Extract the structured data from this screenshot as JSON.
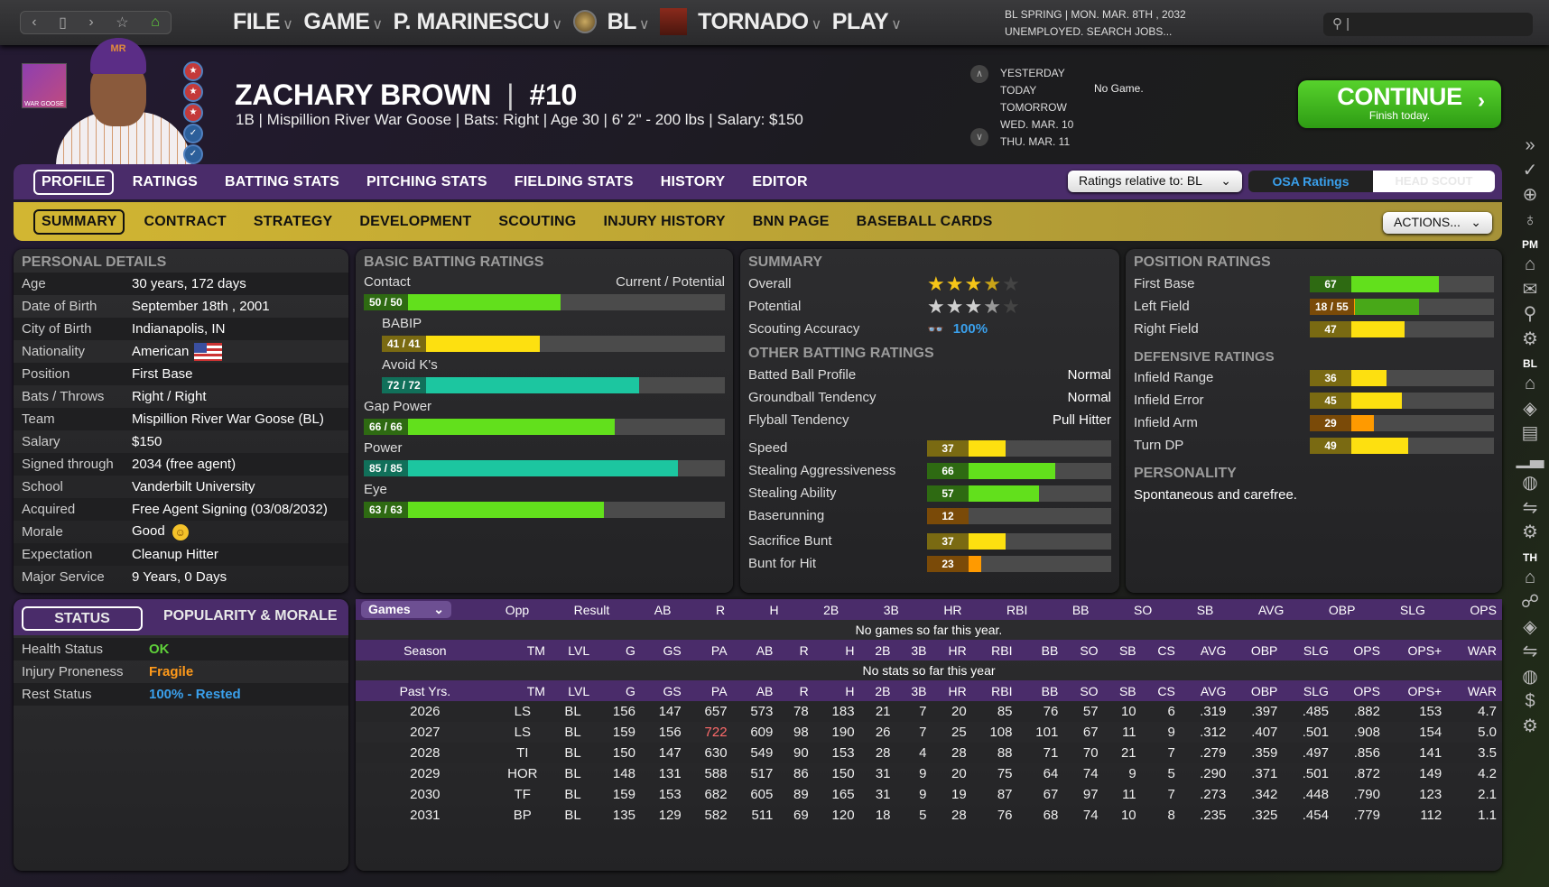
{
  "topbar": {
    "nav_icons": [
      "chevron-left-icon",
      "window-icon",
      "chevron-right-icon",
      "star-icon",
      "home-icon"
    ],
    "menu": [
      {
        "label": "FILE"
      },
      {
        "label": "GAME"
      },
      {
        "label": "P. MARINESCU"
      },
      {
        "label": "BL",
        "logo": "league-logo"
      },
      {
        "label": "TORNADO",
        "logo": "team-logo"
      },
      {
        "label": "PLAY"
      }
    ],
    "date_line": "BL SPRING  |  MON. MAR. 8TH , 2032",
    "status_line": "UNEMPLOYED. SEARCH JOBS...",
    "search_placeholder": ""
  },
  "player": {
    "name": "ZACHARY BROWN",
    "number": "#10",
    "subtitle": "1B | Mispillion River War Goose  |  Bats: Right  |  Age 30  |  6' 2\" - 200 lbs  |  Salary: $150",
    "team_logo_text": "WAR GOOSE",
    "cap_text": "MR"
  },
  "schedule": {
    "days": [
      "YESTERDAY",
      "TODAY",
      "TOMORROW",
      "WED. MAR. 10",
      "THU. MAR. 11"
    ],
    "today_game": "No Game."
  },
  "continue": {
    "label": "CONTINUE",
    "sub": "Finish today."
  },
  "tabs_primary": [
    {
      "label": "PROFILE",
      "active": true
    },
    {
      "label": "RATINGS"
    },
    {
      "label": "BATTING STATS"
    },
    {
      "label": "PITCHING STATS"
    },
    {
      "label": "FIELDING STATS"
    },
    {
      "label": "HISTORY"
    },
    {
      "label": "EDITOR"
    }
  ],
  "tabs_secondary": [
    {
      "label": "SUMMARY",
      "active": true
    },
    {
      "label": "CONTRACT"
    },
    {
      "label": "STRATEGY"
    },
    {
      "label": "DEVELOPMENT"
    },
    {
      "label": "SCOUTING"
    },
    {
      "label": "INJURY HISTORY"
    },
    {
      "label": "BNN PAGE"
    },
    {
      "label": "BASEBALL CARDS"
    }
  ],
  "controls": {
    "ratings_relative": "Ratings relative to: BL",
    "osa": "OSA Ratings",
    "head_scout": "HEAD SCOUT",
    "actions": "ACTIONS..."
  },
  "personal": {
    "title": "PERSONAL DETAILS",
    "rows": [
      {
        "k": "Age",
        "v": "30 years, 172 days"
      },
      {
        "k": "Date of Birth",
        "v": "September 18th , 2001"
      },
      {
        "k": "City of Birth",
        "v": "Indianapolis, IN"
      },
      {
        "k": "Nationality",
        "v": "American",
        "icon": "us-flag-icon"
      },
      {
        "k": "Position",
        "v": "First Base"
      },
      {
        "k": "Bats / Throws",
        "v": "Right / Right"
      },
      {
        "k": "Team",
        "v": "Mispillion River War Goose (BL)"
      },
      {
        "k": "Salary",
        "v": "$150"
      },
      {
        "k": "Signed through",
        "v": "2034 (free agent)"
      },
      {
        "k": "School",
        "v": "Vanderbilt University"
      },
      {
        "k": "Acquired",
        "v": "Free Agent Signing (03/08/2032)"
      },
      {
        "k": "Morale",
        "v": "Good",
        "icon": "smiley-icon"
      },
      {
        "k": "Expectation",
        "v": "Cleanup Hitter"
      },
      {
        "k": "Major Service",
        "v": "9 Years, 0 Days"
      }
    ]
  },
  "batting": {
    "title": "BASIC BATTING RATINGS",
    "cp_label": "Current / Potential",
    "items": [
      {
        "name": "Contact",
        "label": "50 / 50",
        "current": 50,
        "potential": 50,
        "indent": false
      },
      {
        "name": "BABIP",
        "label": "41 / 41",
        "current": 41,
        "potential": 41,
        "indent": true
      },
      {
        "name": "Avoid K's",
        "label": "72 / 72",
        "current": 72,
        "potential": 72,
        "indent": true
      },
      {
        "name": "Gap Power",
        "label": "66 / 66",
        "current": 66,
        "potential": 66,
        "indent": false
      },
      {
        "name": "Power",
        "label": "85 / 85",
        "current": 85,
        "potential": 85,
        "indent": false
      },
      {
        "name": "Eye",
        "label": "63 / 63",
        "current": 63,
        "potential": 63,
        "indent": false
      }
    ]
  },
  "summary": {
    "title": "SUMMARY",
    "overall_label": "Overall",
    "overall_stars": 3.5,
    "potential_label": "Potential",
    "potential_stars": 3.5,
    "scouting_label": "Scouting Accuracy",
    "scouting_value": "100%",
    "other_title": "OTHER BATTING RATINGS",
    "other": [
      {
        "k": "Batted Ball Profile",
        "v": "Normal"
      },
      {
        "k": "Groundball Tendency",
        "v": "Normal"
      },
      {
        "k": "Flyball Tendency",
        "v": "Pull Hitter"
      }
    ],
    "running": [
      {
        "k": "Speed",
        "v": 37
      },
      {
        "k": "Stealing Aggressiveness",
        "v": 66
      },
      {
        "k": "Stealing Ability",
        "v": 57
      },
      {
        "k": "Baserunning",
        "v": 12
      }
    ],
    "bunting": [
      {
        "k": "Sacrifice Bunt",
        "v": 37
      },
      {
        "k": "Bunt for Hit",
        "v": 23
      }
    ]
  },
  "position": {
    "title": "POSITION RATINGS",
    "items": [
      {
        "k": "First Base",
        "v": 67,
        "label": "67"
      },
      {
        "k": "Left Field",
        "v": 18,
        "p": 55,
        "label": "18 / 55"
      },
      {
        "k": "Right Field",
        "v": 47,
        "label": "47"
      }
    ],
    "def_title": "DEFENSIVE RATINGS",
    "def": [
      {
        "k": "Infield Range",
        "v": 36
      },
      {
        "k": "Infield Error",
        "v": 45
      },
      {
        "k": "Infield Arm",
        "v": 29
      },
      {
        "k": "Turn DP",
        "v": 49
      }
    ],
    "personality_title": "PERSONALITY",
    "personality": "Spontaneous and carefree."
  },
  "status": {
    "tab_status": "STATUS",
    "tab_pop": "POPULARITY & MORALE",
    "rows": [
      {
        "k": "Health Status",
        "v": "OK",
        "color": "#5fd03a"
      },
      {
        "k": "Injury Proneness",
        "v": "Fragile",
        "color": "#ff9a1a"
      },
      {
        "k": "Rest Status",
        "v": "100% - Rested",
        "color": "#3aa0ec"
      }
    ]
  },
  "games": {
    "select": "Games",
    "cols": [
      "Opp",
      "Result",
      "AB",
      "R",
      "H",
      "2B",
      "3B",
      "HR",
      "RBI",
      "BB",
      "SO",
      "SB",
      "AVG",
      "OBP",
      "SLG",
      "OPS"
    ],
    "empty": "No games so far this year."
  },
  "season": {
    "cols": [
      "Season",
      "TM",
      "LVL",
      "G",
      "GS",
      "PA",
      "AB",
      "R",
      "H",
      "2B",
      "3B",
      "HR",
      "RBI",
      "BB",
      "SO",
      "SB",
      "CS",
      "AVG",
      "OBP",
      "SLG",
      "OPS",
      "OPS+",
      "WAR"
    ],
    "empty": "No stats so far this year"
  },
  "past": {
    "cols": [
      "Past Yrs.",
      "TM",
      "LVL",
      "G",
      "GS",
      "PA",
      "AB",
      "R",
      "H",
      "2B",
      "3B",
      "HR",
      "RBI",
      "BB",
      "SO",
      "SB",
      "CS",
      "AVG",
      "OBP",
      "SLG",
      "OPS",
      "OPS+",
      "WAR"
    ],
    "rows": [
      [
        "2026",
        "LS",
        "BL",
        "156",
        "147",
        "657",
        "573",
        "78",
        "183",
        "21",
        "7",
        "20",
        "85",
        "76",
        "57",
        "10",
        "6",
        ".319",
        ".397",
        ".485",
        ".882",
        "153",
        "4.7"
      ],
      [
        "2027",
        "LS",
        "BL",
        "159",
        "156",
        "722",
        "609",
        "98",
        "190",
        "26",
        "7",
        "25",
        "108",
        "101",
        "67",
        "11",
        "9",
        ".312",
        ".407",
        ".501",
        ".908",
        "154",
        "5.0"
      ],
      [
        "2028",
        "TI",
        "BL",
        "150",
        "147",
        "630",
        "549",
        "90",
        "153",
        "28",
        "4",
        "28",
        "88",
        "71",
        "70",
        "21",
        "7",
        ".279",
        ".359",
        ".497",
        ".856",
        "141",
        "3.5"
      ],
      [
        "2029",
        "HOR",
        "BL",
        "148",
        "131",
        "588",
        "517",
        "86",
        "150",
        "31",
        "9",
        "20",
        "75",
        "64",
        "74",
        "9",
        "5",
        ".290",
        ".371",
        ".501",
        ".872",
        "149",
        "4.2"
      ],
      [
        "2030",
        "TF",
        "BL",
        "159",
        "153",
        "682",
        "605",
        "89",
        "165",
        "31",
        "9",
        "19",
        "87",
        "67",
        "97",
        "11",
        "7",
        ".273",
        ".342",
        ".448",
        ".790",
        "123",
        "2.1"
      ],
      [
        "2031",
        "BP",
        "BL",
        "135",
        "129",
        "582",
        "511",
        "69",
        "120",
        "18",
        "5",
        "28",
        "76",
        "68",
        "74",
        "10",
        "8",
        ".235",
        ".325",
        ".454",
        ".779",
        "112",
        "1.1"
      ]
    ],
    "highlight": {
      "row": 1,
      "col": 5,
      "color": "#ff6b6b"
    }
  },
  "sidebar": [
    {
      "icon": "expand-icon",
      "g": "»"
    },
    {
      "icon": "check-icon",
      "g": "✓"
    },
    {
      "icon": "globe-icon",
      "g": "⊕"
    },
    {
      "icon": "lightbulb-icon",
      "g": "♁"
    },
    {
      "label": "PM"
    },
    {
      "icon": "home-icon",
      "g": "⌂"
    },
    {
      "icon": "mail-icon",
      "g": "✉"
    },
    {
      "icon": "search-icon",
      "g": "⚲"
    },
    {
      "icon": "gear-icon",
      "g": "⚙"
    },
    {
      "label": "BL"
    },
    {
      "icon": "home-icon",
      "g": "⌂"
    },
    {
      "icon": "diamond-icon",
      "g": "◈"
    },
    {
      "icon": "card-icon",
      "g": "▤"
    },
    {
      "icon": "chart-icon",
      "g": "▁▃"
    },
    {
      "icon": "baseball-icon",
      "g": "◍"
    },
    {
      "icon": "transactions-icon",
      "g": "⇋"
    },
    {
      "icon": "gear-icon",
      "g": "⚙"
    },
    {
      "label": "TH"
    },
    {
      "icon": "home-icon",
      "g": "⌂"
    },
    {
      "icon": "roster-icon",
      "g": "☍"
    },
    {
      "icon": "diamond-icon",
      "g": "◈"
    },
    {
      "icon": "transactions-icon",
      "g": "⇋"
    },
    {
      "icon": "baseball-icon",
      "g": "◍"
    },
    {
      "icon": "dollar-icon",
      "g": "$"
    },
    {
      "icon": "gear-icon",
      "g": "⚙"
    }
  ],
  "colors": {
    "green": "#62e01c",
    "teal": "#1cc6a0",
    "yellow": "#fde010",
    "orange": "#ff9a00",
    "purple": "#4a2c6a",
    "gold": "#c9b035"
  }
}
